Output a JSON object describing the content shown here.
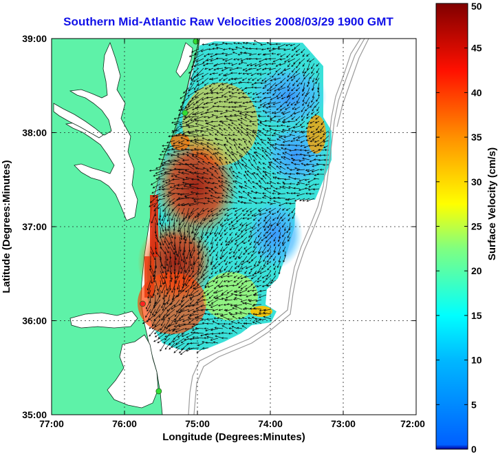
{
  "title": "Southern Mid-Atlantic Raw Velocities 2008/03/29 1900 GMT",
  "map": {
    "xlabel": "Longitude (Degrees:Minutes)",
    "ylabel": "Latitude (Degrees:Minutes)",
    "x_ticks": [
      "77:00",
      "76:00",
      "75:00",
      "74:00",
      "73:00",
      "72:00"
    ],
    "y_ticks": [
      "39:00",
      "38:00",
      "37:00",
      "36:00",
      "35:00"
    ],
    "lon_range": [
      -77,
      -72
    ],
    "lat_range": [
      35,
      39
    ],
    "grid": true,
    "land_color": "#5ef2a8",
    "water_color": "#ffffff",
    "stations": [
      {
        "lon": -75.02,
        "lat": 38.97,
        "color": "#33dd33"
      },
      {
        "lon": -75.17,
        "lat": 38.21,
        "color": "#33dd33"
      },
      {
        "lon": -75.75,
        "lat": 36.18,
        "color": "#ff2222"
      },
      {
        "lon": -75.53,
        "lat": 35.25,
        "color": "#33dd33"
      }
    ]
  },
  "colorbar": {
    "label": "Surface Velocity (cm/s)",
    "ticks": [
      "0",
      "5",
      "10",
      "15",
      "20",
      "25",
      "30",
      "35",
      "40",
      "45",
      "50"
    ],
    "min": 0,
    "max": 50,
    "colormap": "jet"
  }
}
